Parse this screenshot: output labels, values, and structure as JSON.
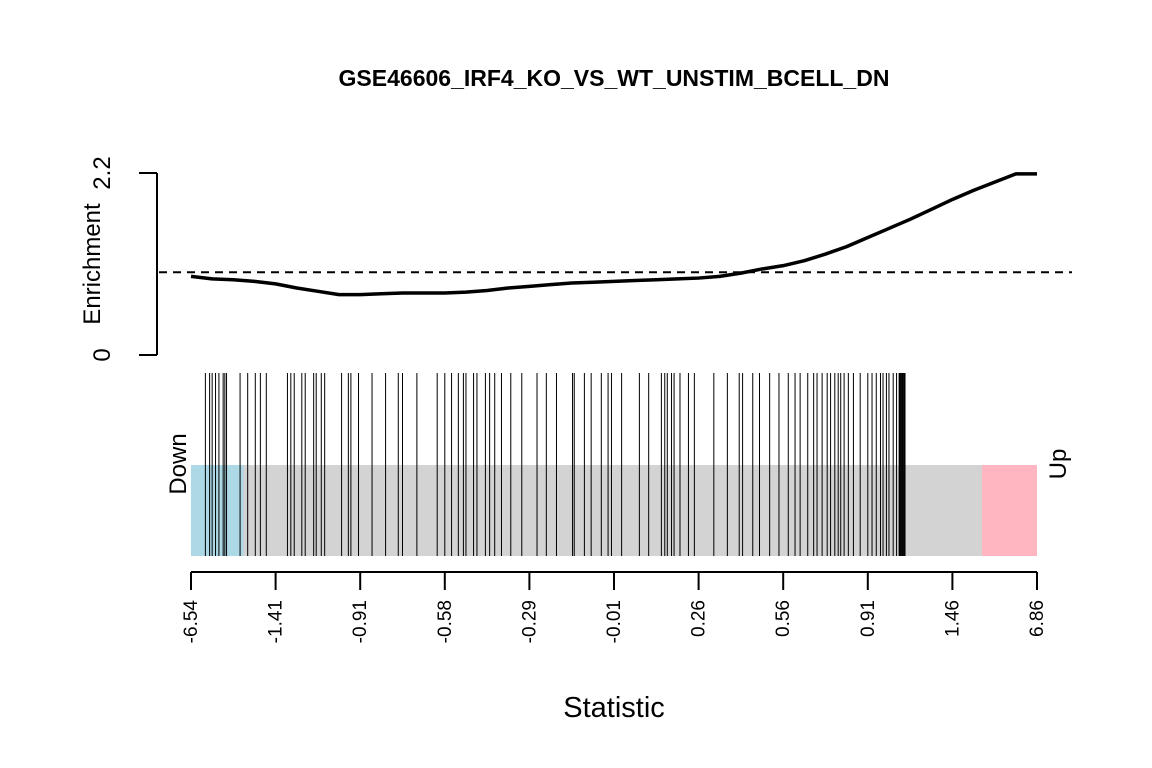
{
  "chart_data": {
    "type": "line",
    "title": "GSE46606_IRF4_KO_VS_WT_UNSTIM_BCELL_DN",
    "xlabel": "Statistic",
    "ylabel": "Enrichment",
    "ylim": [
      0,
      2.2
    ],
    "y_ticks": [
      "0",
      "2.2"
    ],
    "reference_line": 1.0,
    "x_tick_labels": [
      "-6.54",
      "-1.41",
      "-0.91",
      "-0.58",
      "-0.29",
      "-0.01",
      "0.26",
      "0.56",
      "0.91",
      "1.46",
      "6.86"
    ],
    "rank_range": [
      0,
      1000
    ],
    "enrichment_curve": {
      "x": [
        0,
        25,
        50,
        75,
        100,
        125,
        150,
        175,
        200,
        225,
        250,
        275,
        300,
        325,
        350,
        375,
        400,
        425,
        450,
        475,
        500,
        525,
        550,
        575,
        600,
        625,
        650,
        675,
        700,
        725,
        750,
        775,
        800,
        825,
        850,
        875,
        900,
        925,
        950,
        975,
        1000
      ],
      "y": [
        0.95,
        0.92,
        0.91,
        0.89,
        0.86,
        0.81,
        0.77,
        0.73,
        0.73,
        0.74,
        0.75,
        0.75,
        0.75,
        0.76,
        0.78,
        0.81,
        0.83,
        0.85,
        0.87,
        0.88,
        0.89,
        0.9,
        0.91,
        0.92,
        0.93,
        0.95,
        0.99,
        1.04,
        1.08,
        1.14,
        1.22,
        1.31,
        1.42,
        1.53,
        1.64,
        1.76,
        1.88,
        1.99,
        2.09,
        2.19,
        2.19
      ]
    },
    "barcode": {
      "down_region": [
        0,
        62
      ],
      "up_region": [
        935,
        1000
      ],
      "positions": [
        17,
        22,
        25,
        29,
        33,
        38,
        40,
        42,
        58,
        67,
        76,
        82,
        89,
        114,
        118,
        122,
        131,
        135,
        145,
        148,
        154,
        158,
        178,
        186,
        189,
        198,
        214,
        230,
        245,
        250,
        267,
        291,
        300,
        308,
        316,
        322,
        325,
        334,
        338,
        348,
        353,
        359,
        367,
        378,
        391,
        409,
        420,
        432,
        451,
        453,
        465,
        473,
        485,
        493,
        497,
        509,
        530,
        541,
        556,
        560,
        563,
        568,
        571,
        578,
        588,
        595,
        618,
        634,
        648,
        652,
        664,
        672,
        684,
        695,
        706,
        714,
        720,
        729,
        736,
        740,
        746,
        752,
        756,
        761,
        765,
        768,
        772,
        777,
        783,
        791,
        800,
        805,
        810,
        815,
        818,
        822,
        825,
        830,
        834,
        837,
        838,
        839,
        840,
        841,
        842,
        843,
        844
      ]
    },
    "side_labels": {
      "left": "Down",
      "right": "Up"
    },
    "colors": {
      "curve": "#000000",
      "barcode_bg": "#d3d3d3",
      "down": "#add8e6",
      "up": "#ffb6c1"
    }
  }
}
